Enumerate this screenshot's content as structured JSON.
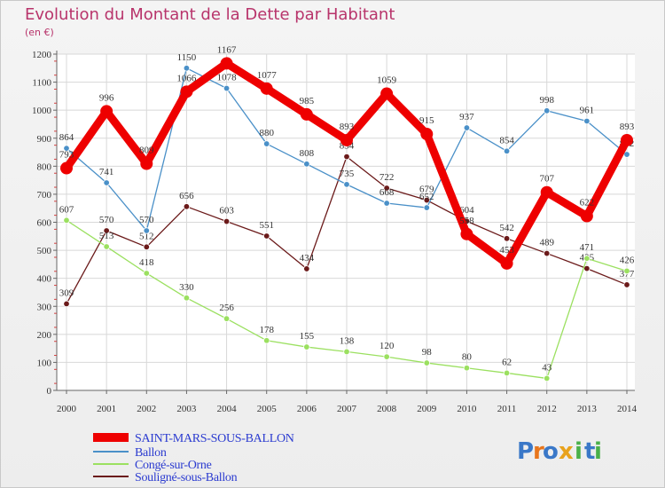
{
  "chart_data": {
    "type": "line",
    "title": "Evolution du Montant de la Dette par Habitant",
    "subtitle": "(en €)",
    "xlabel": "",
    "ylabel": "",
    "x": [
      "2000",
      "2001",
      "2002",
      "2003",
      "2004",
      "2005",
      "2006",
      "2007",
      "2008",
      "2009",
      "2010",
      "2011",
      "2012",
      "2013",
      "2014"
    ],
    "ylim": [
      0,
      1200
    ],
    "yticks": [
      0,
      100,
      200,
      300,
      400,
      500,
      600,
      700,
      800,
      900,
      1000,
      1100,
      1200
    ],
    "grid": true,
    "legend_position": "bottom-left",
    "series": [
      {
        "name": "Souligné-sous-Ballon",
        "color": "#6b1a1a",
        "values": [
          309,
          570,
          512,
          656,
          603,
          551,
          434,
          834,
          722,
          679,
          604,
          542,
          489,
          435,
          377
        ],
        "labels": [
          "309",
          "570",
          "512",
          "656",
          "603",
          "551",
          "434",
          "834",
          "722",
          "679",
          "604",
          "542",
          "489",
          "435",
          "377"
        ]
      },
      {
        "name": "Congé-sur-Orne",
        "color": "#9be060",
        "values": [
          607,
          513,
          418,
          330,
          256,
          178,
          155,
          138,
          120,
          98,
          80,
          62,
          43,
          471,
          426
        ],
        "labels": [
          "607",
          "513",
          "418",
          "330",
          "256",
          "178",
          "155",
          "138",
          "120",
          "98",
          "80",
          "62",
          "43",
          "471",
          "426"
        ]
      },
      {
        "name": "Ballon",
        "color": "#4a90c8",
        "values": [
          864,
          741,
          570,
          1150,
          1078,
          880,
          808,
          735,
          668,
          652,
          937,
          854,
          998,
          961,
          842
        ],
        "labels": [
          "864",
          "741",
          "570",
          "1150",
          "1078",
          "880",
          "808",
          "735",
          "668",
          "652",
          "937",
          "854",
          "998",
          "961",
          "842"
        ]
      },
      {
        "name": "SAINT-MARS-SOUS-BALLON",
        "color": "#ee0000",
        "values": [
          793,
          996,
          809,
          1066,
          1167,
          1077,
          985,
          893,
          1059,
          915,
          558,
          453,
          707,
          622,
          893
        ],
        "labels": [
          "793",
          "996",
          "809",
          "1066",
          "1167",
          "1077",
          "985",
          "893",
          "1059",
          "915",
          "558",
          "453",
          "707",
          "622",
          "893"
        ]
      }
    ],
    "legend_order": [
      "SAINT-MARS-SOUS-BALLON",
      "Ballon",
      "Congé-sur-Orne",
      "Souligné-sous-Ballon"
    ]
  },
  "logo": {
    "letters": [
      "P",
      "r",
      "o",
      "x",
      "i",
      "t",
      "i"
    ]
  }
}
